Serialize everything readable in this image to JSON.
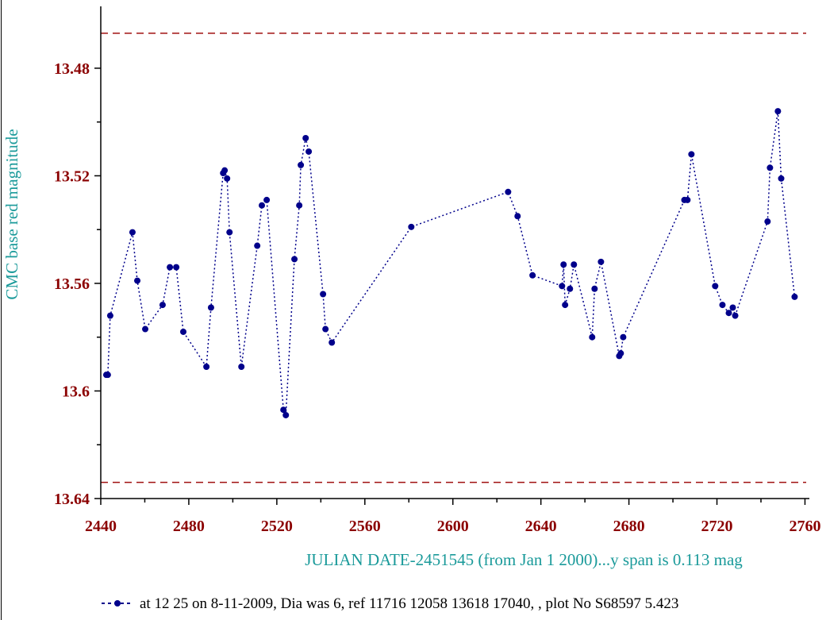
{
  "chart_data": {
    "type": "line",
    "ylabel": "CMC base red magnitude",
    "xlabel": "JULIAN DATE-2451545 (from Jan 1 2000)...y span is 0.113 mag",
    "xlim": [
      2440,
      2762
    ],
    "ylim": [
      13.64,
      13.457
    ],
    "xticks": [
      2440,
      2480,
      2520,
      2560,
      2600,
      2640,
      2680,
      2720,
      2760
    ],
    "xminorticks": [
      2460,
      2500,
      2540,
      2580,
      2620,
      2660,
      2700,
      2740
    ],
    "yticks": [
      13.48,
      13.52,
      13.56,
      13.6,
      13.64
    ],
    "yminorticks": [
      13.5,
      13.54,
      13.58,
      13.62
    ],
    "reference_lines": {
      "color": "#a01010",
      "values": [
        13.467,
        13.634
      ]
    },
    "tick_label_color": "#8b0000",
    "axis_title_color": "#1a9a9a",
    "series": [
      {
        "name": "at 12 25 on 8-11-2009,  Dia was 6, ref 11716 12058 13618 17040, ,  plot No S68597 5.423",
        "color": "#00008b",
        "x": [
          2442.5,
          2443.2,
          2444.3,
          2454.4,
          2456.6,
          2460.2,
          2468.1,
          2471.4,
          2474.3,
          2477.5,
          2488.0,
          2490.1,
          2495.6,
          2496.3,
          2497.4,
          2498.5,
          2503.9,
          2511.1,
          2513.2,
          2515.4,
          2523.0,
          2524.1,
          2528.0,
          2530.2,
          2530.9,
          2533.1,
          2534.5,
          2541.0,
          2542.1,
          2545.0,
          2581.1,
          2625.1,
          2629.4,
          2636.2,
          2649.6,
          2650.3,
          2651.0,
          2653.2,
          2655.0,
          2663.3,
          2664.4,
          2667.3,
          2675.6,
          2676.3,
          2677.4,
          2705.2,
          2706.6,
          2708.4,
          2719.2,
          2722.5,
          2725.4,
          2727.2,
          2728.3,
          2743.0,
          2744.1,
          2747.7,
          2749.2,
          2755.3
        ],
        "y": [
          13.594,
          13.594,
          13.572,
          13.541,
          13.559,
          13.577,
          13.568,
          13.554,
          13.554,
          13.578,
          13.591,
          13.569,
          13.519,
          13.518,
          13.521,
          13.541,
          13.591,
          13.546,
          13.531,
          13.529,
          13.607,
          13.609,
          13.551,
          13.531,
          13.516,
          13.506,
          13.511,
          13.564,
          13.577,
          13.582,
          13.539,
          13.526,
          13.535,
          13.557,
          13.561,
          13.553,
          13.568,
          13.562,
          13.553,
          13.58,
          13.562,
          13.552,
          13.587,
          13.586,
          13.58,
          13.529,
          13.529,
          13.512,
          13.561,
          13.568,
          13.571,
          13.569,
          13.572,
          13.537,
          13.517,
          13.496,
          13.521,
          13.565
        ]
      }
    ]
  }
}
